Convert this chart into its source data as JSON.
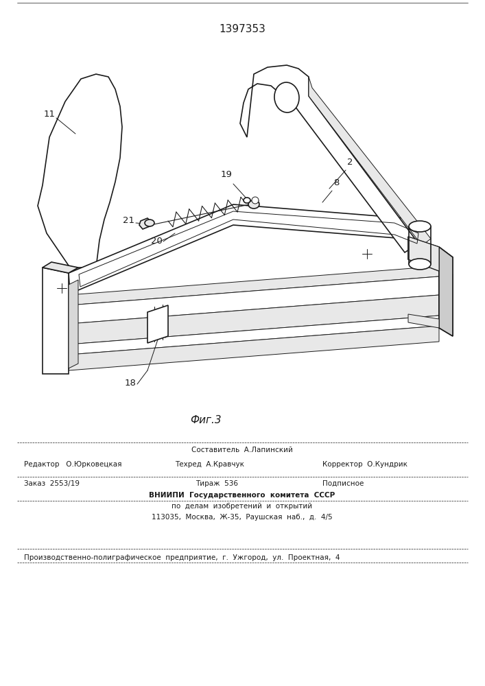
{
  "title": "1397353",
  "fig_label": "Фиг.3",
  "bg_color": "#ffffff",
  "line_color": "#1a1a1a",
  "lw_main": 1.2,
  "lw_thin": 0.7,
  "footer": {
    "line1_center": "Составитель  А.Лапинский",
    "line2_left": "Редактор   О.Юрковецкая",
    "line2_mid": "Техред  А.Кравчук",
    "line2_right": "Корректор  О.Кундрик",
    "line3_left": "Заказ  2553/19",
    "line3_mid": "Тираж  536",
    "line3_right": "Подписное",
    "line4": "ВНИИПИ  Государственного  комитета  СССР",
    "line5": "по  делам  изобретений  и  открытий",
    "line6": "113035,  Москва,  Ж-35,  Раушская  наб.,  д.  4/5",
    "line7": "Производственно-полиграфическое  предприятие,  г.  Ужгород,  ул.  Проектная,  4"
  }
}
